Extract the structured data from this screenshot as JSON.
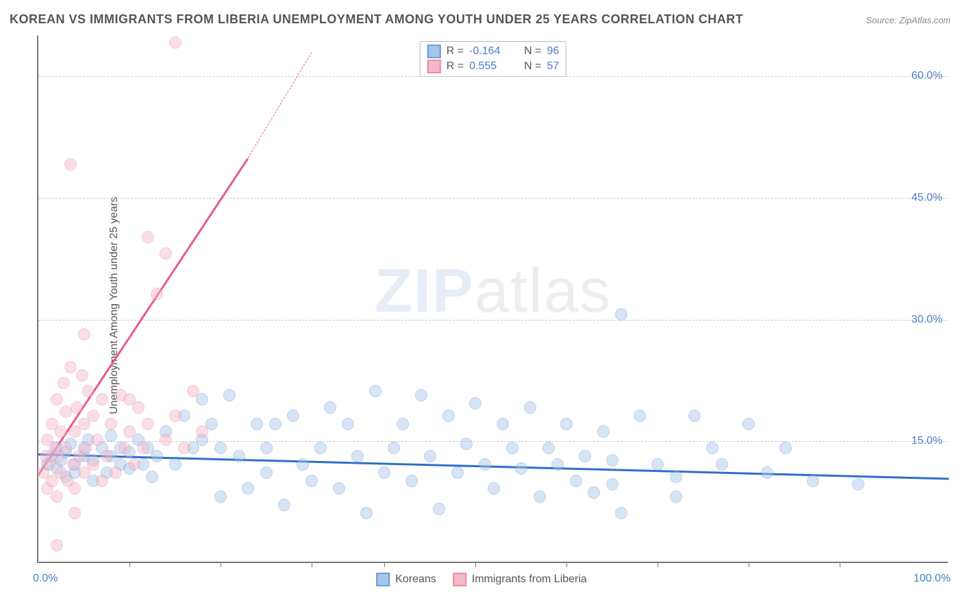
{
  "title": "KOREAN VS IMMIGRANTS FROM LIBERIA UNEMPLOYMENT AMONG YOUTH UNDER 25 YEARS CORRELATION CHART",
  "source": "Source: ZipAtlas.com",
  "ylabel": "Unemployment Among Youth under 25 years",
  "watermark_bold": "ZIP",
  "watermark_rest": "atlas",
  "chart": {
    "type": "scatter",
    "xlim": [
      0,
      100
    ],
    "ylim": [
      0,
      65
    ],
    "ytick_values": [
      15,
      30,
      45,
      60
    ],
    "ytick_labels": [
      "15.0%",
      "30.0%",
      "45.0%",
      "60.0%"
    ],
    "xtick_positions": [
      10,
      20,
      30,
      38,
      48,
      58,
      68,
      78,
      88
    ],
    "x_axis_left_label": "0.0%",
    "x_axis_right_label": "100.0%",
    "background_color": "#ffffff",
    "grid_color": "#cccccc",
    "marker_radius": 9,
    "marker_opacity": 0.45,
    "series": [
      {
        "name": "Koreans",
        "color_fill": "#a8c5ea",
        "color_stroke": "#6b9bd8",
        "trend": {
          "x1": 0,
          "y1": 13.5,
          "x2": 100,
          "y2": 10.5,
          "color": "#2e6fc9",
          "width": 3
        },
        "R": "-0.164",
        "N": "96",
        "points": [
          [
            1,
            12
          ],
          [
            1.5,
            13
          ],
          [
            2,
            11.5
          ],
          [
            2,
            14
          ],
          [
            2.5,
            12.5
          ],
          [
            3,
            13.5
          ],
          [
            3,
            10.5
          ],
          [
            3.5,
            14.5
          ],
          [
            4,
            12
          ],
          [
            4,
            11
          ],
          [
            5,
            13
          ],
          [
            5,
            14
          ],
          [
            5.5,
            15
          ],
          [
            6,
            12.5
          ],
          [
            6,
            10
          ],
          [
            7,
            14
          ],
          [
            7.5,
            11
          ],
          [
            8,
            13
          ],
          [
            8,
            15.5
          ],
          [
            9,
            12
          ],
          [
            9,
            14
          ],
          [
            10,
            11.5
          ],
          [
            10,
            13.5
          ],
          [
            11,
            15
          ],
          [
            11.5,
            12
          ],
          [
            12,
            14
          ],
          [
            12.5,
            10.5
          ],
          [
            13,
            13
          ],
          [
            14,
            16
          ],
          [
            15,
            12
          ],
          [
            16,
            18
          ],
          [
            17,
            14
          ],
          [
            18,
            20
          ],
          [
            18,
            15
          ],
          [
            19,
            17
          ],
          [
            20,
            14
          ],
          [
            20,
            8
          ],
          [
            21,
            20.5
          ],
          [
            22,
            13
          ],
          [
            23,
            9
          ],
          [
            24,
            17
          ],
          [
            25,
            11
          ],
          [
            25,
            14
          ],
          [
            26,
            17
          ],
          [
            27,
            7
          ],
          [
            28,
            18
          ],
          [
            29,
            12
          ],
          [
            30,
            10
          ],
          [
            31,
            14
          ],
          [
            32,
            19
          ],
          [
            33,
            9
          ],
          [
            34,
            17
          ],
          [
            35,
            13
          ],
          [
            36,
            6
          ],
          [
            37,
            21
          ],
          [
            38,
            11
          ],
          [
            39,
            14
          ],
          [
            40,
            17
          ],
          [
            41,
            10
          ],
          [
            42,
            20.5
          ],
          [
            43,
            13
          ],
          [
            44,
            6.5
          ],
          [
            45,
            18
          ],
          [
            46,
            11
          ],
          [
            47,
            14.5
          ],
          [
            48,
            19.5
          ],
          [
            49,
            12
          ],
          [
            50,
            9
          ],
          [
            51,
            17
          ],
          [
            52,
            14
          ],
          [
            53,
            11.5
          ],
          [
            54,
            19
          ],
          [
            55,
            8
          ],
          [
            56,
            14
          ],
          [
            57,
            12
          ],
          [
            58,
            17
          ],
          [
            59,
            10
          ],
          [
            60,
            13
          ],
          [
            61,
            8.5
          ],
          [
            62,
            16
          ],
          [
            63,
            12.5
          ],
          [
            64,
            6
          ],
          [
            64,
            30.5
          ],
          [
            66,
            18
          ],
          [
            68,
            12
          ],
          [
            70,
            10.5
          ],
          [
            70,
            8
          ],
          [
            72,
            18
          ],
          [
            75,
            12
          ],
          [
            78,
            17
          ],
          [
            80,
            11
          ],
          [
            82,
            14
          ],
          [
            85,
            10
          ],
          [
            90,
            9.5
          ],
          [
            63,
            9.5
          ],
          [
            74,
            14
          ]
        ]
      },
      {
        "name": "Immigrants from Liberia",
        "color_fill": "#f5b8c8",
        "color_stroke": "#e88ba5",
        "trend": {
          "x1": 0,
          "y1": 11,
          "x2": 23,
          "y2": 50,
          "color": "#e85a8a",
          "width": 3,
          "dashed_extend_to_x": 30,
          "dashed_extend_to_y": 63
        },
        "R": "0.555",
        "N": "57",
        "points": [
          [
            0.5,
            11
          ],
          [
            0.8,
            13
          ],
          [
            1,
            9
          ],
          [
            1,
            15
          ],
          [
            1.2,
            12
          ],
          [
            1.5,
            17
          ],
          [
            1.5,
            10
          ],
          [
            1.8,
            14
          ],
          [
            2,
            20
          ],
          [
            2,
            8
          ],
          [
            2.2,
            13
          ],
          [
            2.5,
            16
          ],
          [
            2.5,
            11
          ],
          [
            2.8,
            22
          ],
          [
            3,
            14
          ],
          [
            3,
            18.5
          ],
          [
            3.2,
            10
          ],
          [
            3.5,
            24
          ],
          [
            3.8,
            12
          ],
          [
            4,
            16
          ],
          [
            4,
            9
          ],
          [
            4.2,
            19
          ],
          [
            4.5,
            13
          ],
          [
            4.8,
            23
          ],
          [
            5,
            11
          ],
          [
            5,
            17
          ],
          [
            5.2,
            14
          ],
          [
            5.5,
            21
          ],
          [
            4,
            6
          ],
          [
            2,
            2
          ],
          [
            3.5,
            49
          ],
          [
            5,
            28
          ],
          [
            6,
            12
          ],
          [
            6,
            18
          ],
          [
            6.5,
            15
          ],
          [
            7,
            10
          ],
          [
            7,
            20
          ],
          [
            7.5,
            13
          ],
          [
            8,
            17
          ],
          [
            8.5,
            11
          ],
          [
            9,
            20.5
          ],
          [
            9.5,
            14
          ],
          [
            10,
            16
          ],
          [
            10.5,
            12
          ],
          [
            11,
            19
          ],
          [
            11.5,
            14
          ],
          [
            12,
            17
          ],
          [
            12,
            40
          ],
          [
            13,
            33
          ],
          [
            14,
            15
          ],
          [
            15,
            18
          ],
          [
            15,
            64
          ],
          [
            16,
            14
          ],
          [
            17,
            21
          ],
          [
            18,
            16
          ],
          [
            14,
            38
          ],
          [
            10,
            20
          ]
        ]
      }
    ]
  },
  "legend_bottom": {
    "items": [
      {
        "label": "Koreans",
        "fill": "#a8c5ea",
        "stroke": "#6b9bd8"
      },
      {
        "label": "Immigrants from Liberia",
        "fill": "#f5b8c8",
        "stroke": "#e88ba5"
      }
    ]
  }
}
